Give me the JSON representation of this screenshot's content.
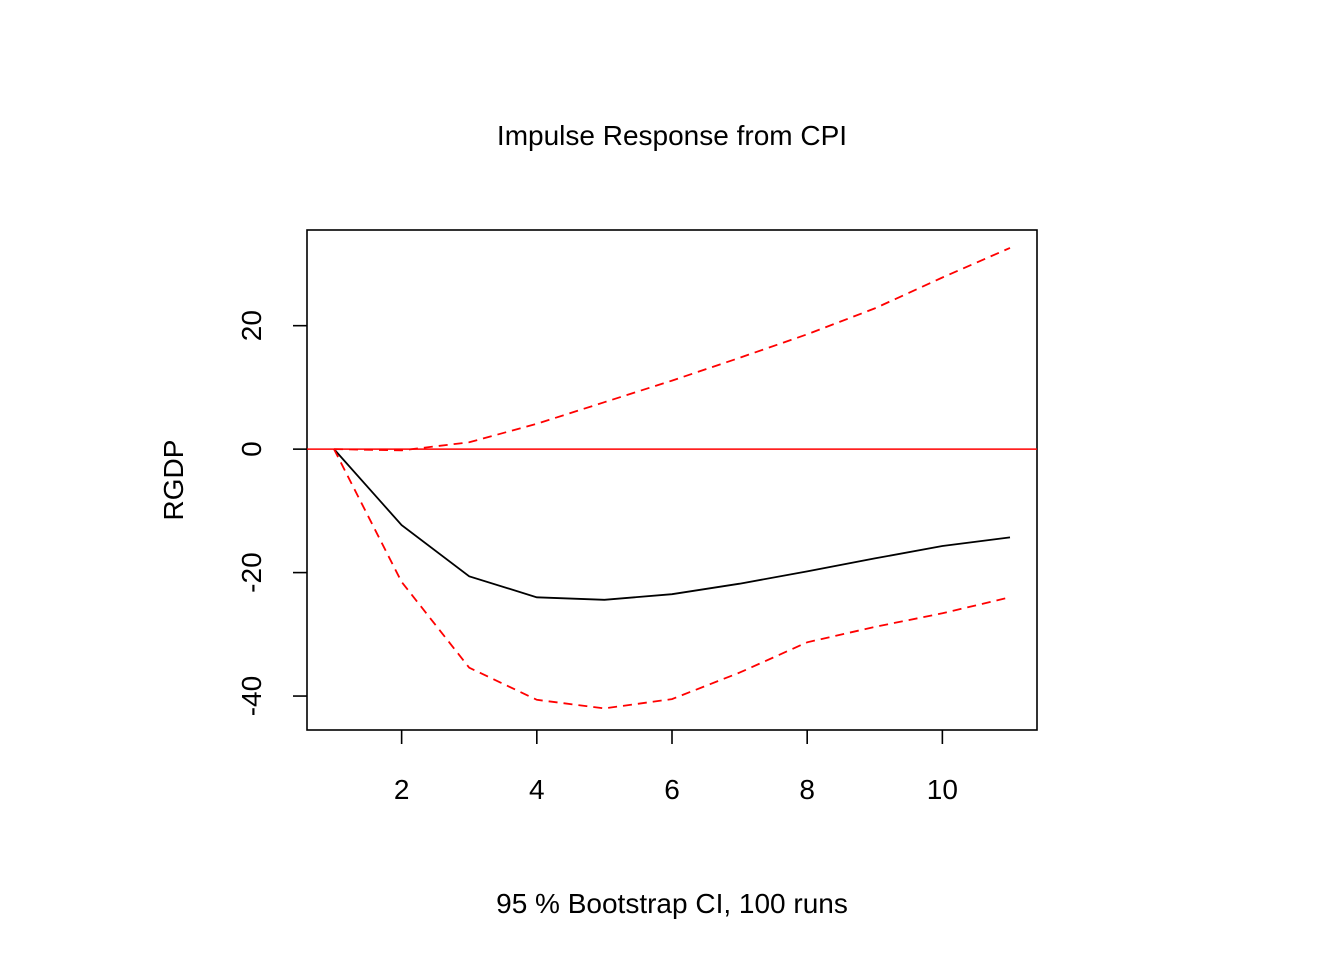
{
  "chart_data": {
    "type": "line",
    "title": "Impulse Response from CPI",
    "xlabel": "95 % Bootstrap CI,  100 runs",
    "ylabel": "RGDP",
    "xlim": [
      0.6,
      11.4
    ],
    "ylim": [
      -45.5,
      35.5
    ],
    "x_ticks": [
      2,
      4,
      6,
      8,
      10
    ],
    "y_ticks": [
      -40,
      -20,
      0,
      20
    ],
    "grid": false,
    "x": [
      1,
      2,
      3,
      4,
      5,
      6,
      7,
      8,
      9,
      10,
      11
    ],
    "series": [
      {
        "role": "response",
        "color": "#000000",
        "dash": "solid",
        "values": [
          0,
          -12.3,
          -20.6,
          -24.0,
          -24.4,
          -23.5,
          -21.8,
          -19.8,
          -17.7,
          -15.7,
          -14.3
        ]
      },
      {
        "role": "upper",
        "color": "#ff0000",
        "dash": "dashed",
        "values": [
          0,
          -0.2,
          1.1,
          4.1,
          7.6,
          11.1,
          14.8,
          18.6,
          22.8,
          27.8,
          32.6
        ]
      },
      {
        "role": "lower",
        "color": "#ff0000",
        "dash": "dashed",
        "values": [
          0,
          -21.5,
          -35.4,
          -40.6,
          -42.0,
          -40.5,
          -36.2,
          -31.3,
          -28.8,
          -26.6,
          -24.0
        ]
      }
    ],
    "reference_line": {
      "y": 0,
      "color": "#ff0000"
    }
  }
}
